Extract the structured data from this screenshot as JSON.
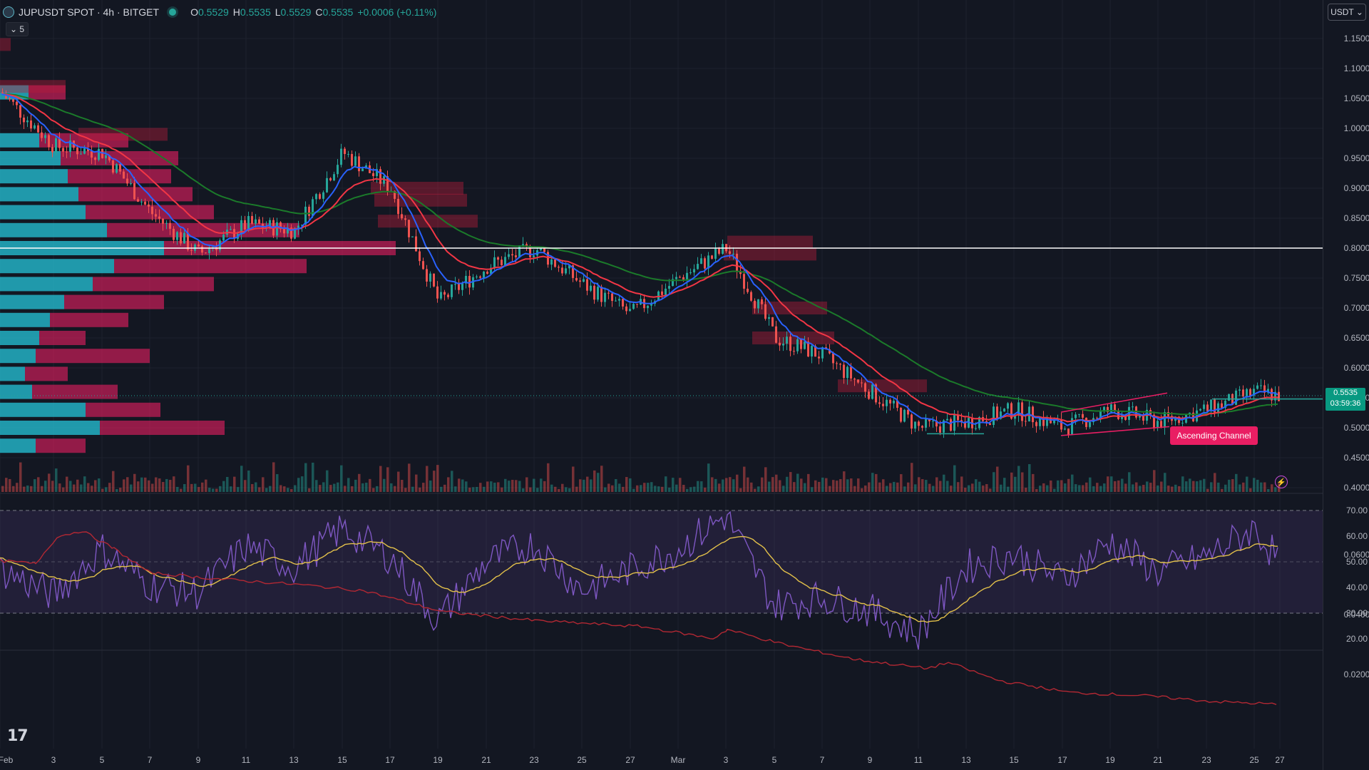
{
  "legend": {
    "symbol": "JUPUSDT SPOT · 4h · BITGET",
    "open_label": "O",
    "open_value": "0.5529",
    "high_label": "H",
    "high_value": "0.5535",
    "low_label": "L",
    "low_value": "0.5529",
    "close_label": "C",
    "close_value": "0.5535",
    "change": "+0.0006 (+0.11%)",
    "indicators_toggle": "⌄ 5"
  },
  "currency_button": "USDT ⌄",
  "price_axis": [
    "1.1500",
    "1.1000",
    "1.0500",
    "1.0000",
    "0.9500",
    "0.9000",
    "0.8500",
    "0.8000",
    "0.7500",
    "0.7000",
    "0.6500",
    "0.6000",
    "0.5500",
    "0.5000",
    "0.4500",
    "0.4000"
  ],
  "rsi_axis": [
    "70.00",
    "60.00",
    "50.00",
    "40.00",
    "30.00",
    "20.00"
  ],
  "atr_axis": [
    "0.0600",
    "0.0400",
    "0.0200"
  ],
  "last_price": "0.5535",
  "countdown": "03:59:36",
  "time_axis": [
    "Feb",
    "3",
    "5",
    "7",
    "9",
    "11",
    "13",
    "15",
    "17",
    "19",
    "21",
    "23",
    "25",
    "27",
    "Mar",
    "3",
    "5",
    "7",
    "9",
    "11",
    "13",
    "15",
    "17",
    "19",
    "21",
    "23",
    "25",
    "27"
  ],
  "drawings": {
    "channel_label": "Ascending Channel",
    "horizontal_level": 0.8
  },
  "colors": {
    "up": "#26a69a",
    "down": "#ef5350",
    "ema_fast": "#2962ff",
    "ema_mid": "#f23645",
    "ema_slow": "#1b7a2a",
    "rsi": "#7e57c2",
    "rsi_ma": "#e2c04a",
    "atr": "#b22833"
  },
  "chart_data": {
    "type": "line",
    "title": "JUPUSDT SPOT · 4h · BITGET",
    "x": [
      "Feb 1",
      "Feb 3",
      "Feb 5",
      "Feb 7",
      "Feb 9",
      "Feb 11",
      "Feb 13",
      "Feb 15",
      "Feb 17",
      "Feb 19",
      "Feb 21",
      "Feb 23",
      "Feb 25",
      "Feb 27",
      "Mar 1",
      "Mar 3",
      "Mar 5",
      "Mar 7",
      "Mar 9",
      "Mar 11",
      "Mar 13",
      "Mar 15",
      "Mar 17",
      "Mar 19",
      "Mar 21",
      "Mar 23",
      "Mar 25",
      "Mar 26"
    ],
    "series": [
      {
        "name": "close",
        "values": [
          1.06,
          0.97,
          0.96,
          0.86,
          0.79,
          0.84,
          0.83,
          0.96,
          0.9,
          0.71,
          0.77,
          0.8,
          0.74,
          0.69,
          0.75,
          0.8,
          0.65,
          0.62,
          0.56,
          0.5,
          0.51,
          0.53,
          0.5,
          0.53,
          0.51,
          0.53,
          0.56,
          0.5535
        ]
      },
      {
        "name": "rsi",
        "values": [
          47,
          37,
          55,
          41,
          38,
          56,
          48,
          63,
          52,
          27,
          50,
          57,
          39,
          47,
          55,
          68,
          33,
          36,
          31,
          22,
          48,
          53,
          43,
          58,
          46,
          52,
          63,
          50
        ]
      }
    ],
    "ylim": [
      0.4,
      1.17
    ]
  }
}
